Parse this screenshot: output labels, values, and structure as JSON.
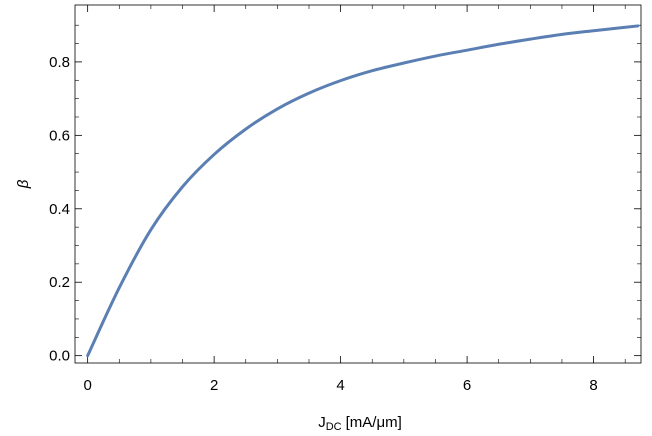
{
  "chart_data": {
    "type": "line",
    "title": "",
    "xlabel": "J",
    "xlabel_sub": "DC",
    "xlabel_unit": "[mA/μm]",
    "ylabel": "β",
    "xlim": [
      -0.2,
      8.75
    ],
    "ylim": [
      -0.02,
      0.955
    ],
    "grid": false,
    "legend": "none",
    "x_ticks": [
      0,
      2,
      4,
      6,
      8
    ],
    "x_tick_labels": [
      "0",
      "2",
      "4",
      "6",
      "8"
    ],
    "y_ticks": [
      0.0,
      0.2,
      0.4,
      0.6,
      0.8
    ],
    "y_tick_labels": [
      "0.0",
      "0.2",
      "0.4",
      "0.6",
      "0.8"
    ],
    "series": [
      {
        "color": "#5b7fb3",
        "x": [
          0,
          0.5,
          1,
          1.5,
          2,
          2.5,
          3,
          3.5,
          4,
          4.5,
          5,
          5.5,
          6,
          6.5,
          7,
          7.5,
          8,
          8.7
        ],
        "y": [
          0.0,
          0.185,
          0.343,
          0.46,
          0.548,
          0.617,
          0.672,
          0.715,
          0.749,
          0.776,
          0.797,
          0.816,
          0.832,
          0.848,
          0.862,
          0.875,
          0.885,
          0.898
        ]
      }
    ]
  }
}
